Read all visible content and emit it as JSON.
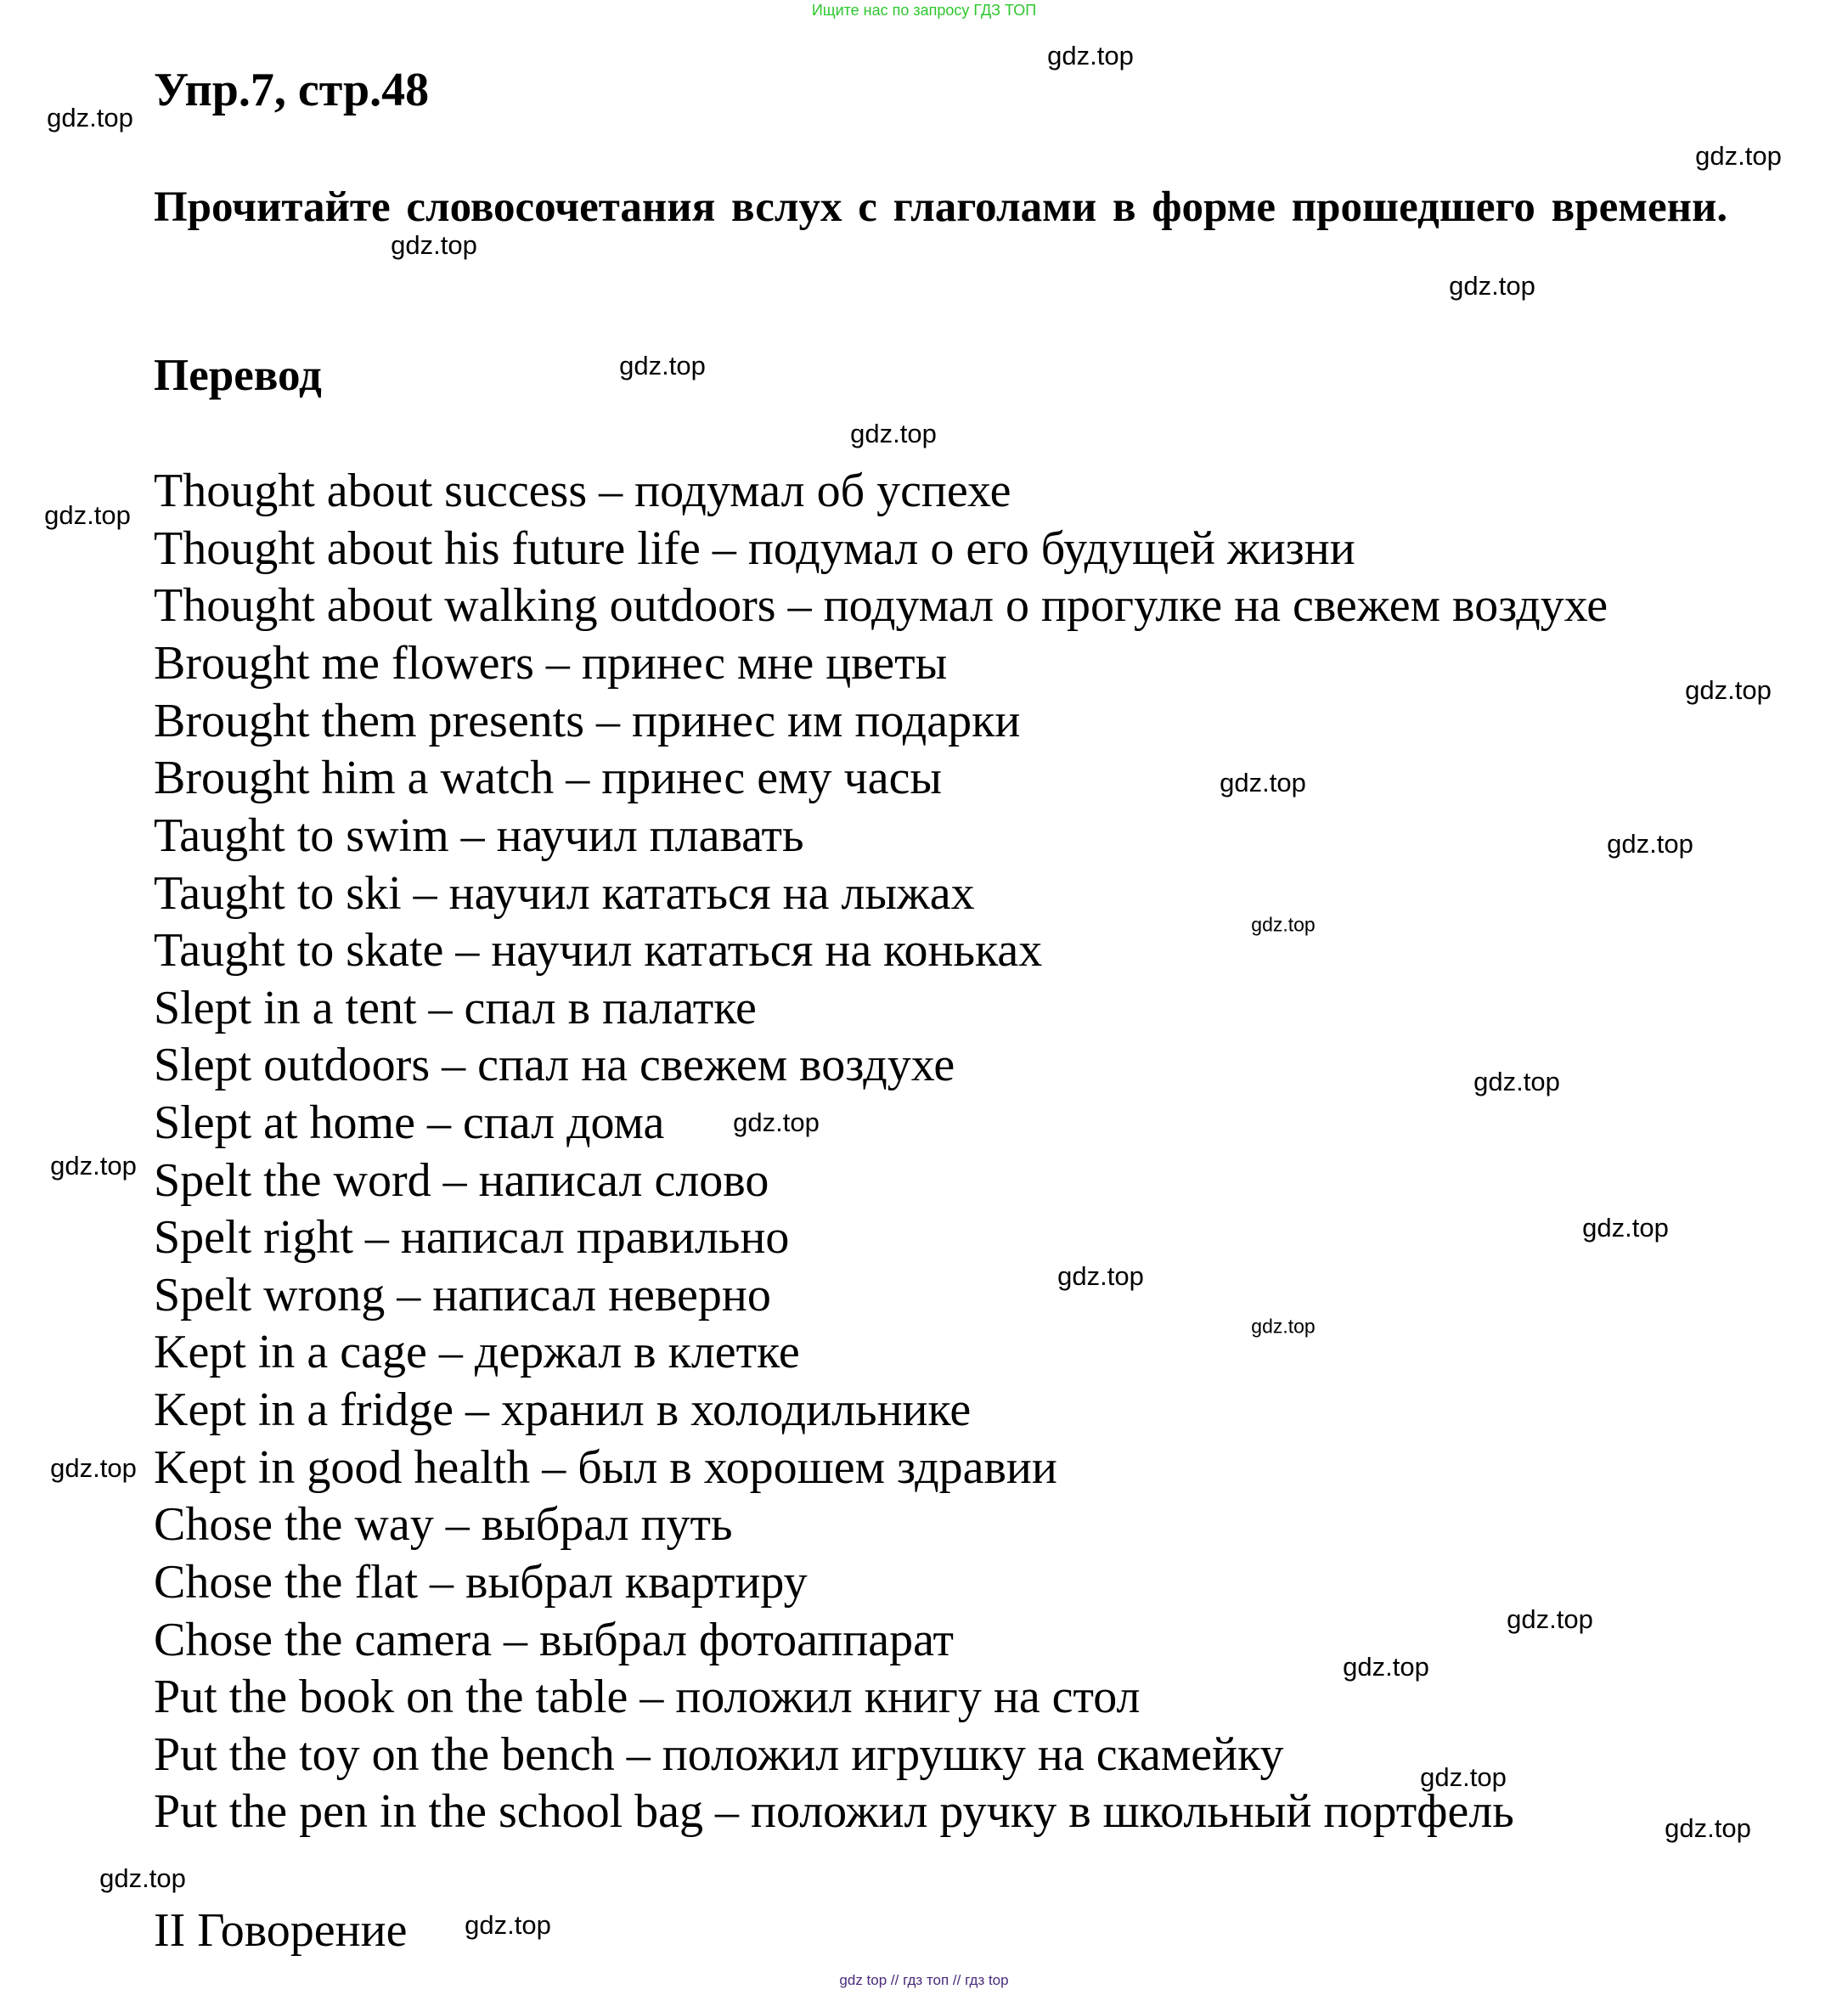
{
  "banner_top": "Ищите нас по запросу ГДЗ ТОП",
  "banner_bottom": "gdz top  //  гдз топ  //  гдз top",
  "title": "Упр.7, стр.48",
  "task": "Прочитайте словосочетания вслух с глаголами в форме прошедшего времени.",
  "section_title": "Перевод",
  "phrases": [
    "Thought about success – подумал об успехе",
    "Thought about his future life – подумал о его будущей жизни",
    "Thought about walking outdoors – подумал о прогулке на свежем воздухе",
    "Brought me flowers – принес мне цветы",
    "Brought them presents – принес им подарки",
    "Brought him a watch – принес ему часы",
    "Taught to swim – научил плавать",
    "Taught to ski – научил кататься на лыжах",
    "Taught to skate – научил кататься на коньках",
    "Slept in a tent – спал в палатке",
    "Slept outdoors – спал на свежем воздухе",
    "Slept at home – спал дома",
    "Spelt the word – написал слово",
    "Spelt right – написал правильно",
    "Spelt wrong – написал неверно",
    "Kept in a cage – держал в клетке",
    "Kept in a fridge – хранил в холодильнике",
    "Kept in good health – был в хорошем здравии",
    "Chose the way – выбрал путь",
    "Chose the flat – выбрал квартиру",
    "Chose the camera – выбрал фотоаппарат",
    "Put the book on the table – положил книгу на стол",
    "Put the toy on the bench – положил игрушку на скамейку",
    "Put the pen in the school bag – положил ручку в школьный портфель"
  ],
  "next_section": "II Говорение",
  "watermark": "gdz.top",
  "colors": {
    "banner_top": "#2ec72e",
    "banner_bottom": "#4a2a7a"
  }
}
